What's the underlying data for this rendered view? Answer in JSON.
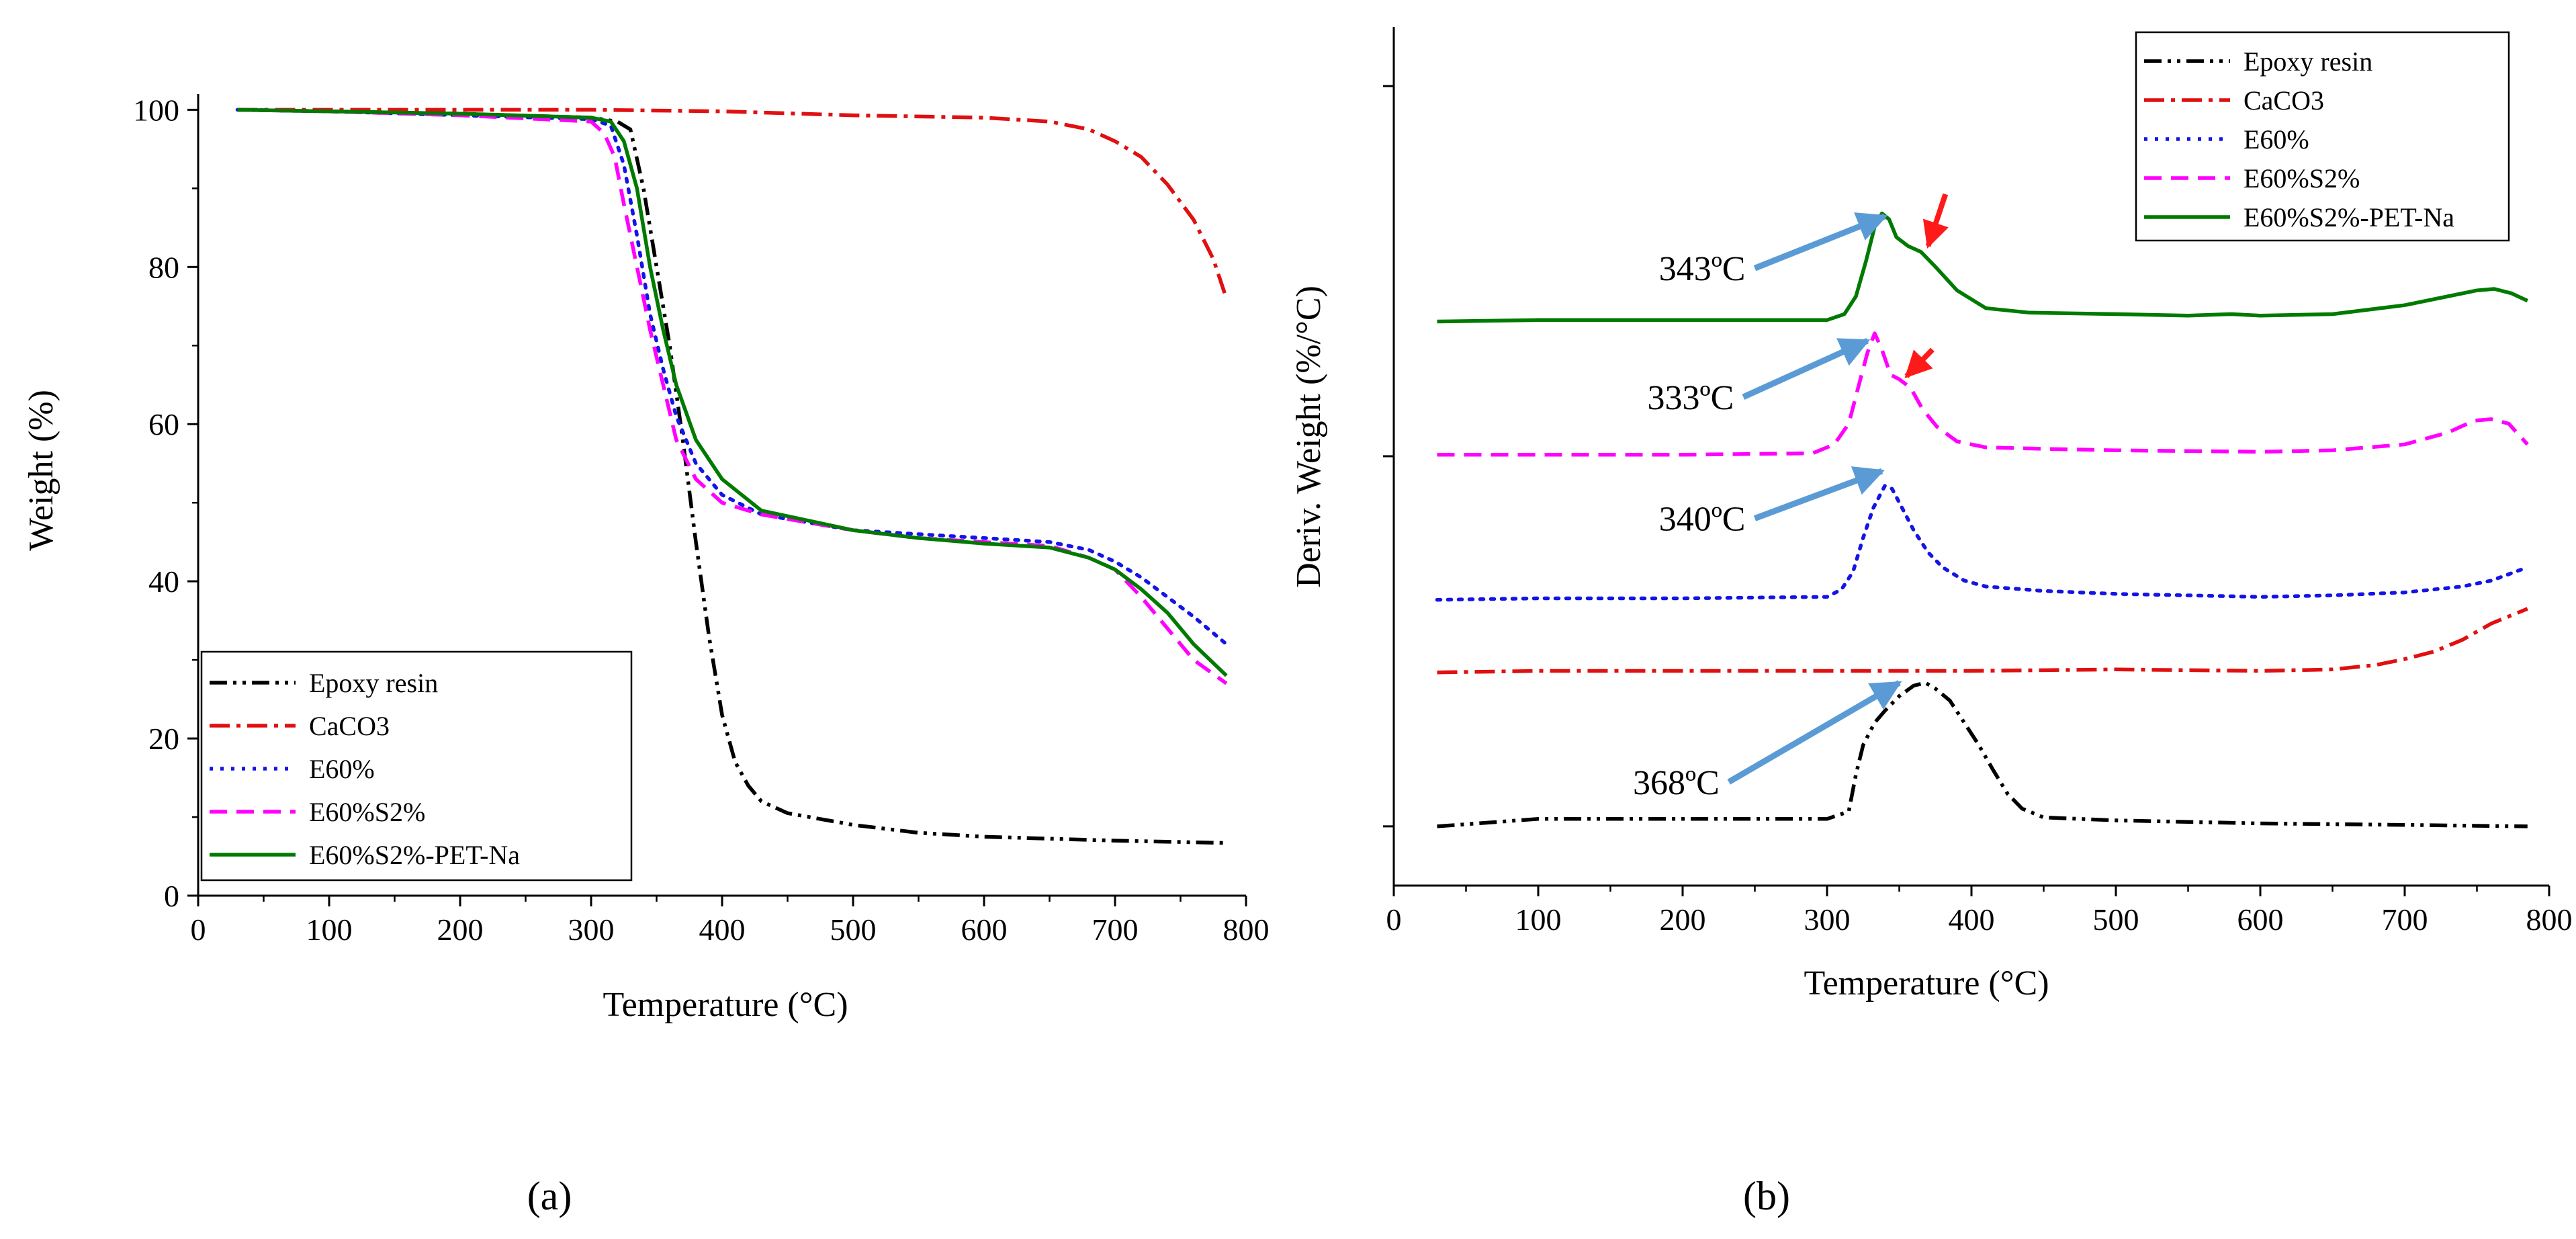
{
  "figure": {
    "panel_a_label": "(a)",
    "panel_b_label": "(b)"
  },
  "chart_data": [
    {
      "type": "line",
      "panel": "a",
      "xlabel": "Temperature (°C)",
      "ylabel": "Weight (%)",
      "xlim": [
        0,
        800
      ],
      "ylim": [
        0,
        102
      ],
      "xticks": [
        0,
        100,
        200,
        300,
        400,
        500,
        600,
        700,
        800
      ],
      "yticks": [
        0,
        20,
        40,
        60,
        80,
        100
      ],
      "grid": false,
      "legend_position": "bottom-left",
      "series": [
        {
          "name": "Epoxy resin",
          "color": "#000000",
          "dash": "dashdotdot",
          "points": [
            [
              30,
              100
            ],
            [
              100,
              99.8
            ],
            [
              200,
              99.5
            ],
            [
              300,
              99
            ],
            [
              320,
              98.5
            ],
            [
              330,
              97.5
            ],
            [
              340,
              90
            ],
            [
              350,
              80
            ],
            [
              360,
              70
            ],
            [
              370,
              58
            ],
            [
              380,
              45
            ],
            [
              390,
              33
            ],
            [
              400,
              23
            ],
            [
              410,
              17
            ],
            [
              420,
              14
            ],
            [
              430,
              12
            ],
            [
              450,
              10.5
            ],
            [
              500,
              9
            ],
            [
              550,
              8
            ],
            [
              600,
              7.5
            ],
            [
              700,
              7
            ],
            [
              785,
              6.7
            ]
          ]
        },
        {
          "name": "CaCO3",
          "color": "#e01010",
          "dash": "dashdot",
          "points": [
            [
              30,
              100
            ],
            [
              100,
              100
            ],
            [
              200,
              100
            ],
            [
              300,
              100
            ],
            [
              400,
              99.8
            ],
            [
              500,
              99.3
            ],
            [
              600,
              99
            ],
            [
              650,
              98.5
            ],
            [
              680,
              97.5
            ],
            [
              700,
              96
            ],
            [
              720,
              94
            ],
            [
              740,
              90.5
            ],
            [
              760,
              86
            ],
            [
              775,
              81
            ],
            [
              785,
              76
            ]
          ]
        },
        {
          "name": "E60%",
          "color": "#1414e6",
          "dash": "dot",
          "points": [
            [
              30,
              100
            ],
            [
              100,
              99.8
            ],
            [
              200,
              99.3
            ],
            [
              300,
              98.8
            ],
            [
              315,
              98
            ],
            [
              325,
              93
            ],
            [
              335,
              84
            ],
            [
              345,
              74
            ],
            [
              355,
              67
            ],
            [
              365,
              61
            ],
            [
              380,
              55
            ],
            [
              400,
              51
            ],
            [
              430,
              48.5
            ],
            [
              500,
              46.5
            ],
            [
              550,
              46
            ],
            [
              600,
              45.5
            ],
            [
              650,
              45
            ],
            [
              680,
              44
            ],
            [
              700,
              42.5
            ],
            [
              720,
              40.5
            ],
            [
              740,
              38
            ],
            [
              760,
              35.5
            ],
            [
              785,
              32
            ]
          ]
        },
        {
          "name": "E60%S2%",
          "color": "#ff00ff",
          "dash": "dash",
          "points": [
            [
              30,
              100
            ],
            [
              100,
              99.8
            ],
            [
              200,
              99.3
            ],
            [
              300,
              98.5
            ],
            [
              310,
              97
            ],
            [
              318,
              94
            ],
            [
              325,
              88
            ],
            [
              335,
              80
            ],
            [
              345,
              72
            ],
            [
              355,
              65
            ],
            [
              365,
              58
            ],
            [
              380,
              53
            ],
            [
              400,
              50
            ],
            [
              430,
              48.5
            ],
            [
              500,
              46.5
            ],
            [
              550,
              45.5
            ],
            [
              600,
              45
            ],
            [
              650,
              44.5
            ],
            [
              680,
              43
            ],
            [
              700,
              41.5
            ],
            [
              720,
              38
            ],
            [
              740,
              34
            ],
            [
              760,
              30
            ],
            [
              785,
              27
            ]
          ]
        },
        {
          "name": "E60%S2%-PET-Na",
          "color": "#007a00",
          "dash": "solid",
          "points": [
            [
              30,
              100
            ],
            [
              100,
              99.8
            ],
            [
              200,
              99.5
            ],
            [
              300,
              99
            ],
            [
              315,
              98.5
            ],
            [
              325,
              96
            ],
            [
              335,
              90
            ],
            [
              345,
              80
            ],
            [
              355,
              72
            ],
            [
              365,
              65
            ],
            [
              380,
              58
            ],
            [
              400,
              53
            ],
            [
              430,
              49
            ],
            [
              500,
              46.5
            ],
            [
              550,
              45.5
            ],
            [
              600,
              44.8
            ],
            [
              650,
              44.3
            ],
            [
              680,
              43
            ],
            [
              700,
              41.5
            ],
            [
              720,
              39
            ],
            [
              740,
              36
            ],
            [
              760,
              32
            ],
            [
              785,
              28
            ]
          ]
        }
      ]
    },
    {
      "type": "line",
      "panel": "b",
      "xlabel": "Temperature (°C)",
      "ylabel": "Deriv. Weight (%/°C)",
      "xlim": [
        0,
        800
      ],
      "ylim": [
        -0.4,
        5.4
      ],
      "xticks": [
        0,
        100,
        200,
        300,
        400,
        500,
        600,
        700,
        800
      ],
      "ytick_marks": [
        0,
        2.5,
        5
      ],
      "grid": false,
      "legend_position": "top-right",
      "series": [
        {
          "name": "Epoxy resin",
          "color": "#000000",
          "dash": "dashdotdot",
          "points": [
            [
              30,
              0
            ],
            [
              100,
              0.05
            ],
            [
              200,
              0.05
            ],
            [
              300,
              0.05
            ],
            [
              315,
              0.1
            ],
            [
              320,
              0.35
            ],
            [
              325,
              0.55
            ],
            [
              333,
              0.7
            ],
            [
              340,
              0.78
            ],
            [
              350,
              0.88
            ],
            [
              360,
              0.95
            ],
            [
              368,
              0.97
            ],
            [
              375,
              0.93
            ],
            [
              385,
              0.85
            ],
            [
              395,
              0.7
            ],
            [
              405,
              0.55
            ],
            [
              415,
              0.38
            ],
            [
              425,
              0.22
            ],
            [
              435,
              0.12
            ],
            [
              450,
              0.06
            ],
            [
              500,
              0.04
            ],
            [
              600,
              0.02
            ],
            [
              700,
              0.01
            ],
            [
              785,
              0
            ]
          ]
        },
        {
          "name": "CaCO3",
          "color": "#e01010",
          "dash": "dashdot",
          "points": [
            [
              30,
              1.04
            ],
            [
              100,
              1.05
            ],
            [
              200,
              1.05
            ],
            [
              300,
              1.05
            ],
            [
              400,
              1.05
            ],
            [
              500,
              1.06
            ],
            [
              600,
              1.05
            ],
            [
              650,
              1.06
            ],
            [
              680,
              1.09
            ],
            [
              700,
              1.13
            ],
            [
              720,
              1.18
            ],
            [
              740,
              1.26
            ],
            [
              760,
              1.37
            ],
            [
              785,
              1.47
            ]
          ]
        },
        {
          "name": "E60%",
          "color": "#1414e6",
          "dash": "dot",
          "points": [
            [
              30,
              1.53
            ],
            [
              100,
              1.54
            ],
            [
              200,
              1.54
            ],
            [
              300,
              1.55
            ],
            [
              310,
              1.6
            ],
            [
              318,
              1.72
            ],
            [
              325,
              1.95
            ],
            [
              332,
              2.15
            ],
            [
              340,
              2.3
            ],
            [
              345,
              2.28
            ],
            [
              352,
              2.15
            ],
            [
              360,
              2.0
            ],
            [
              370,
              1.85
            ],
            [
              380,
              1.75
            ],
            [
              395,
              1.66
            ],
            [
              410,
              1.62
            ],
            [
              450,
              1.59
            ],
            [
              500,
              1.57
            ],
            [
              550,
              1.56
            ],
            [
              600,
              1.55
            ],
            [
              650,
              1.56
            ],
            [
              700,
              1.58
            ],
            [
              740,
              1.62
            ],
            [
              760,
              1.66
            ],
            [
              785,
              1.75
            ]
          ]
        },
        {
          "name": "E60%S2%",
          "color": "#ff00ff",
          "dash": "dash",
          "points": [
            [
              30,
              2.51
            ],
            [
              100,
              2.51
            ],
            [
              200,
              2.51
            ],
            [
              290,
              2.52
            ],
            [
              305,
              2.58
            ],
            [
              315,
              2.72
            ],
            [
              322,
              2.98
            ],
            [
              328,
              3.2
            ],
            [
              333,
              3.33
            ],
            [
              338,
              3.22
            ],
            [
              344,
              3.05
            ],
            [
              350,
              3.02
            ],
            [
              358,
              2.96
            ],
            [
              366,
              2.82
            ],
            [
              376,
              2.7
            ],
            [
              390,
              2.6
            ],
            [
              410,
              2.56
            ],
            [
              450,
              2.55
            ],
            [
              500,
              2.54
            ],
            [
              600,
              2.53
            ],
            [
              650,
              2.54
            ],
            [
              700,
              2.58
            ],
            [
              730,
              2.66
            ],
            [
              748,
              2.74
            ],
            [
              760,
              2.75
            ],
            [
              772,
              2.72
            ],
            [
              785,
              2.58
            ]
          ]
        },
        {
          "name": "E60%S2%-PET-Na",
          "color": "#007a00",
          "dash": "solid",
          "points": [
            [
              30,
              3.41
            ],
            [
              100,
              3.42
            ],
            [
              200,
              3.42
            ],
            [
              300,
              3.42
            ],
            [
              312,
              3.46
            ],
            [
              320,
              3.58
            ],
            [
              327,
              3.82
            ],
            [
              333,
              4.05
            ],
            [
              338,
              4.14
            ],
            [
              343,
              4.1
            ],
            [
              348,
              3.98
            ],
            [
              356,
              3.92
            ],
            [
              365,
              3.88
            ],
            [
              375,
              3.78
            ],
            [
              390,
              3.62
            ],
            [
              410,
              3.5
            ],
            [
              440,
              3.47
            ],
            [
              500,
              3.46
            ],
            [
              550,
              3.45
            ],
            [
              580,
              3.46
            ],
            [
              600,
              3.45
            ],
            [
              650,
              3.46
            ],
            [
              700,
              3.52
            ],
            [
              730,
              3.58
            ],
            [
              750,
              3.62
            ],
            [
              762,
              3.63
            ],
            [
              774,
              3.6
            ],
            [
              785,
              3.55
            ]
          ]
        }
      ],
      "annotations": [
        {
          "text": "343ºC",
          "arrow_from": [
            250,
            3.77
          ],
          "arrow_to": [
            340,
            4.12
          ]
        },
        {
          "text": "333ºC",
          "arrow_from": [
            242,
            2.9
          ],
          "arrow_to": [
            328,
            3.28
          ]
        },
        {
          "text": "340ºC",
          "arrow_from": [
            250,
            2.08
          ],
          "arrow_to": [
            338,
            2.4
          ]
        },
        {
          "text": "368ºC",
          "arrow_from": [
            232,
            0.3
          ],
          "arrow_to": [
            350,
            0.97
          ]
        }
      ],
      "shoulder_arrows": [
        {
          "arrow_from": [
            382,
            4.27
          ],
          "arrow_to": [
            370,
            3.92
          ]
        },
        {
          "arrow_from": [
            373,
            3.22
          ],
          "arrow_to": [
            355,
            3.04
          ]
        }
      ]
    }
  ]
}
